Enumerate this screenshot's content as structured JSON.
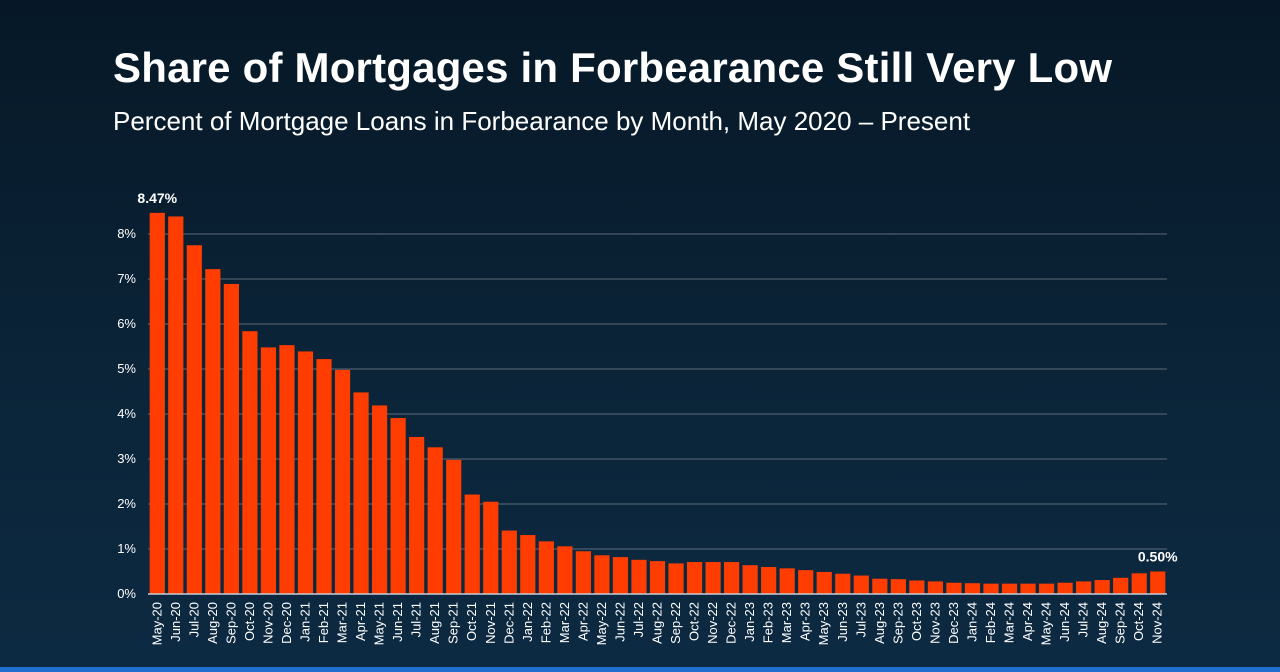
{
  "title": "Share of Mortgages in Forbearance Still Very Low",
  "subtitle": "Percent of Mortgage Loans in Forbearance by Month, May 2020 – Present",
  "chart_data": {
    "type": "bar",
    "ylim": [
      0,
      8.5
    ],
    "yticks": [
      0,
      1,
      2,
      3,
      4,
      5,
      6,
      7,
      8
    ],
    "ytick_labels": [
      "0%",
      "1%",
      "2%",
      "3%",
      "4%",
      "5%",
      "6%",
      "7%",
      "8%"
    ],
    "grid": true,
    "bar_color": "#ff3d00",
    "categories": [
      "May-20",
      "Jun-20",
      "Jul-20",
      "Aug-20",
      "Sep-20",
      "Oct-20",
      "Nov-20",
      "Dec-20",
      "Jan-21",
      "Feb-21",
      "Mar-21",
      "Apr-21",
      "May-21",
      "Jun-21",
      "Jul-21",
      "Aug-21",
      "Sep-21",
      "Oct-21",
      "Nov-21",
      "Dec-21",
      "Jan-22",
      "Feb-22",
      "Mar-22",
      "Apr-22",
      "May-22",
      "Jun-22",
      "Jul-22",
      "Aug-22",
      "Sep-22",
      "Oct-22",
      "Nov-22",
      "Dec-22",
      "Jan-23",
      "Feb-23",
      "Mar-23",
      "Apr-23",
      "May-23",
      "Jun-23",
      "Jul-23",
      "Aug-23",
      "Sep-23",
      "Oct-23",
      "Nov-23",
      "Dec-23",
      "Jan-24",
      "Feb-24",
      "Mar-24",
      "Apr-24",
      "May-24",
      "Jun-24",
      "Jul-24",
      "Aug-24",
      "Sep-24",
      "Oct-24",
      "Nov-24"
    ],
    "values": [
      8.47,
      8.39,
      7.75,
      7.22,
      6.89,
      5.84,
      5.48,
      5.53,
      5.39,
      5.22,
      4.98,
      4.48,
      4.19,
      3.91,
      3.49,
      3.26,
      2.98,
      2.21,
      2.05,
      1.41,
      1.31,
      1.17,
      1.06,
      0.95,
      0.86,
      0.82,
      0.76,
      0.73,
      0.68,
      0.71,
      0.71,
      0.71,
      0.64,
      0.6,
      0.57,
      0.53,
      0.49,
      0.45,
      0.41,
      0.34,
      0.33,
      0.3,
      0.28,
      0.25,
      0.24,
      0.23,
      0.23,
      0.23,
      0.23,
      0.25,
      0.28,
      0.31,
      0.36,
      0.46,
      0.5
    ],
    "data_labels": [
      {
        "category": "May-20",
        "text": "8.47%"
      },
      {
        "category": "Nov-24",
        "text": "0.50%"
      }
    ]
  }
}
